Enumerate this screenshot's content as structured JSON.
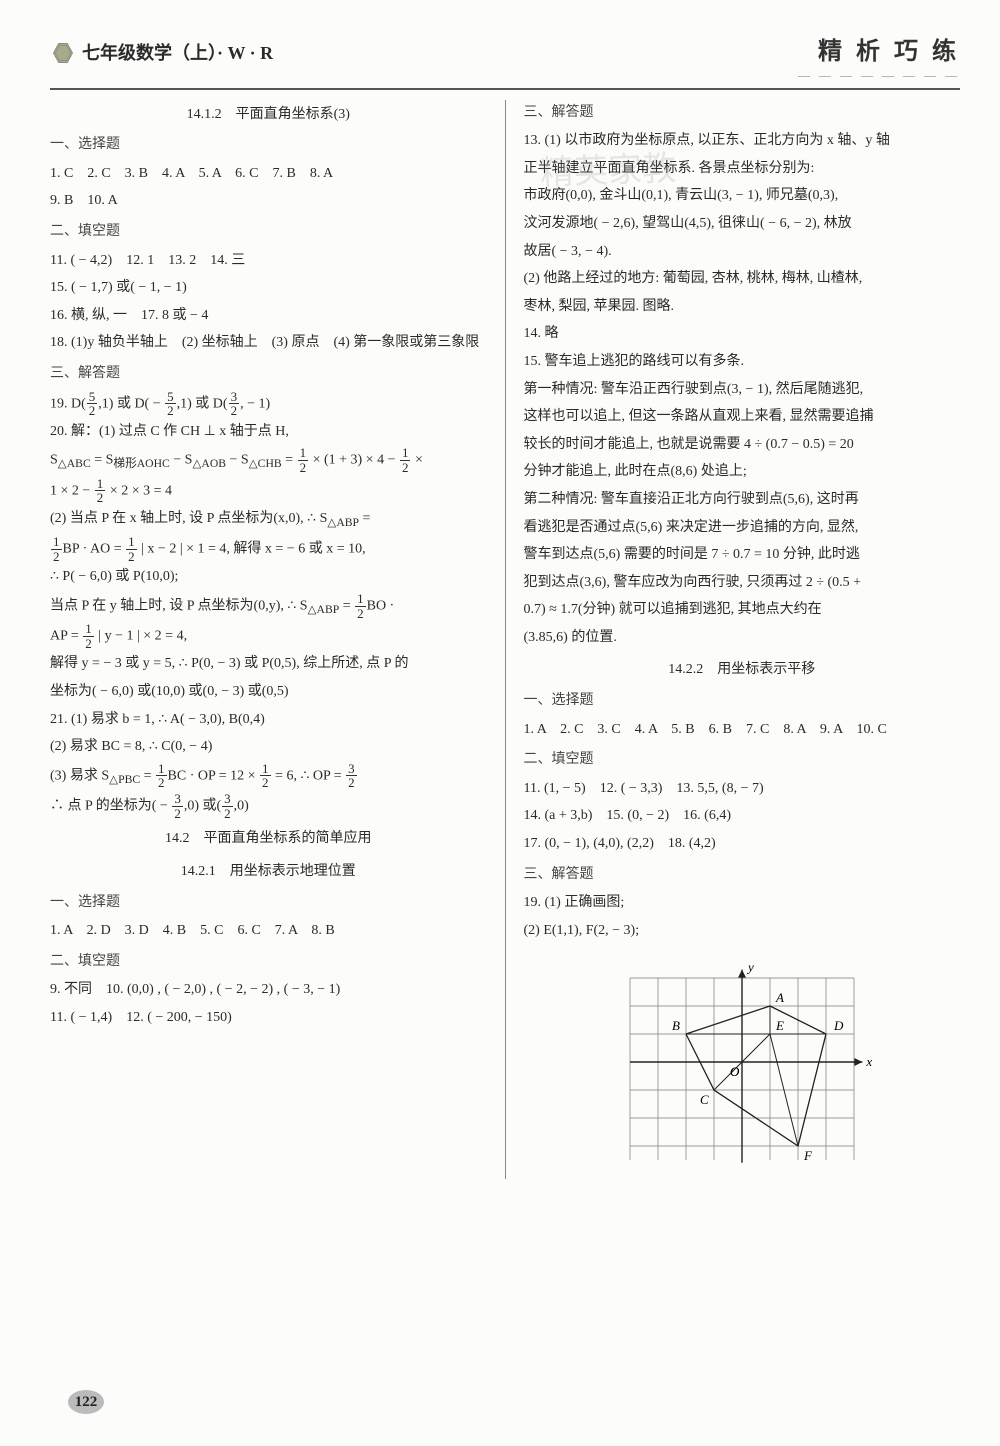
{
  "header": {
    "left": "七年级数学（上）· W · R",
    "right": "精 析 巧 练"
  },
  "left_col": {
    "title1": "14.1.2　平面直角坐标系(3)",
    "h_choice": "一、选择题",
    "line1": "1. C　2. C　3. B　4. A　5. A　6. C　7. B　8. A",
    "line2": "9. B　10. A",
    "h_fill": "二、填空题",
    "line3": "11. ( − 4,2)　12. 1　13. 2　14. 三",
    "line4": "15. ( − 1,7) 或( − 1, − 1)",
    "line5": "16. 横, 纵, 一　17. 8 或 − 4",
    "line6": "18. (1)y 轴负半轴上　(2) 坐标轴上　(3) 原点　(4) 第一象限或第三象限",
    "h_answer": "三、解答题",
    "q19_pre": "19. D(",
    "q19_mid1": ",1) 或 D( − ",
    "q19_mid2": ",1) 或 D(",
    "q19_end": ", − 1)",
    "q20a": "20. 解：(1) 过点 C 作 CH ⊥ x 轴于点 H,",
    "q20b_pre": "S",
    "q20b_sub1": "△ABC",
    "q20b_eq": " = S",
    "q20b_sub2": "梯形AOHC",
    "q20b_eq2": " − S",
    "q20b_sub3": "△AOB",
    "q20b_eq3": " − S",
    "q20b_sub4": "△CHB",
    "q20b_eq4": " = ",
    "q20b_mid": " × (1 + 3) × 4 − ",
    "q20b_tail": " ×",
    "q20c_pre": "1 × 2 − ",
    "q20c_end": " × 2 × 3 = 4",
    "q20d": "(2) 当点 P 在 x 轴上时, 设 P 点坐标为(x,0), ∴ S",
    "q20d_sub": "△ABP",
    "q20d_end": " =",
    "q20e_mid": "BP · AO = ",
    "q20e_mid2": " | x − 2 | × 1 = 4, 解得 x = − 6 或 x = 10,",
    "q20f": "∴ P( − 6,0) 或 P(10,0);",
    "q20g_pre": "当点 P 在 y 轴上时, 设 P 点坐标为(0,y), ∴ S",
    "q20g_sub": "△ABP",
    "q20g_mid": " = ",
    "q20g_end": "BO ·",
    "q20h_pre": "AP = ",
    "q20h_end": " | y − 1 | × 2 = 4,",
    "q20i": "解得 y = − 3 或 y = 5, ∴ P(0, − 3) 或 P(0,5), 综上所述, 点 P 的",
    "q20j": "坐标为( − 6,0) 或(10,0) 或(0, − 3) 或(0,5)",
    "q21a": "21. (1) 易求 b = 1, ∴ A( − 3,0), B(0,4)",
    "q21b": "(2) 易求 BC = 8, ∴ C(0, − 4)",
    "q21c_pre": "(3) 易求 S",
    "q21c_sub": "△PBC",
    "q21c_mid": " = ",
    "q21c_mid2": "BC · OP = 12 × ",
    "q21c_mid3": " = 6, ∴ OP = ",
    "q21d_pre": "∴ 点 P 的坐标为( − ",
    "q21d_mid": ",0) 或(",
    "q21d_end": ",0)",
    "title2": "14.2　平面直角坐标系的简单应用",
    "title3": "14.2.1　用坐标表示地理位置",
    "h_choice2": "一、选择题",
    "line7": "1. A　2. D　3. D　4. B　5. C　6. C　7. A　8. B",
    "h_fill2": "二、填空题",
    "line8": "9. 不同　10. (0,0) , ( − 2,0) , ( − 2, − 2) , ( − 3, − 1)",
    "line9": "11. ( − 1,4)　12. ( − 200, − 150)"
  },
  "right_col": {
    "h_answer": "三、解答题",
    "l1": "13. (1) 以市政府为坐标原点, 以正东、正北方向为 x 轴、y 轴",
    "l2": "正半轴建立平面直角坐标系. 各景点坐标分别为:",
    "l3": "市政府(0,0), 金斗山(0,1), 青云山(3, − 1), 师兄墓(0,3),",
    "l4": "汶河发源地( − 2,6), 望驾山(4,5), 徂徕山( − 6, − 2), 林放",
    "l5": "故居( − 3, − 4).",
    "l6": "(2) 他路上经过的地方: 葡萄园, 杏林, 桃林, 梅林, 山楂林,",
    "l7": "枣林, 梨园, 苹果园. 图略.",
    "l8": "14. 略",
    "l9": "15. 警车追上逃犯的路线可以有多条.",
    "l10": "第一种情况: 警车沿正西行驶到点(3, − 1), 然后尾随逃犯,",
    "l11": "这样也可以追上, 但这一条路从直观上来看, 显然需要追捕",
    "l12": "较长的时间才能追上, 也就是说需要 4 ÷ (0.7 − 0.5) = 20",
    "l13": "分钟才能追上, 此时在点(8,6) 处追上;",
    "l14": "第二种情况: 警车直接沿正北方向行驶到点(5,6), 这时再",
    "l15": "看逃犯是否通过点(5,6) 来决定进一步追捕的方向, 显然,",
    "l16": "警车到达点(5,6) 需要的时间是 7 ÷ 0.7 = 10 分钟, 此时逃",
    "l17": "犯到达点(3,6), 警车应改为向西行驶, 只须再过 2 ÷ (0.5 +",
    "l18": "0.7) ≈ 1.7(分钟) 就可以追捕到逃犯, 其地点大约在",
    "l19": "(3.85,6) 的位置.",
    "title4": "14.2.2　用坐标表示平移",
    "h_choice3": "一、选择题",
    "rline1": "1. A　2. C　3. C　4. A　5. B　6. B　7. C　8. A　9. A　10. C",
    "h_fill3": "二、填空题",
    "rline2": "11. (1, − 5)　12. ( − 3,3)　13. 5,5, (8, − 7)",
    "rline3": "14. (a + 3,b)　15. (0, − 2)　16. (6,4)",
    "rline4": "17. (0, − 1), (4,0), (2,2)　18. (4,2)",
    "h_answer3": "三、解答题",
    "rline5": "19. (1) 正确画图;",
    "rline6": "(2) E(1,1), F(2, − 3);"
  },
  "graph": {
    "labels": {
      "A": "A",
      "B": "B",
      "C": "C",
      "D": "D",
      "E": "E",
      "F": "F",
      "O": "O",
      "x": "x",
      "y": "y"
    },
    "points": {
      "A": [
        1,
        2
      ],
      "B": [
        -2,
        1
      ],
      "D": [
        3,
        1
      ],
      "E": [
        1,
        1
      ],
      "O": [
        0,
        0
      ],
      "C": [
        -1,
        -1
      ],
      "F": [
        2,
        -3
      ]
    },
    "grid_color": "#7a7a7a",
    "axis_color": "#222",
    "line_color": "#222"
  },
  "page_number": "122",
  "watermark": "精英家教"
}
